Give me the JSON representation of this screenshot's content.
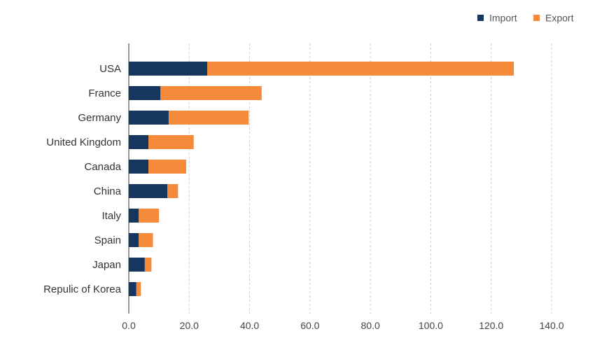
{
  "chart_data": {
    "type": "bar",
    "orientation": "horizontal",
    "stacked": true,
    "categories": [
      "USA",
      "France",
      "Germany",
      "United Kingdom",
      "Canada",
      "China",
      "Italy",
      "Spain",
      "Japan",
      "Repulic of Korea"
    ],
    "series": [
      {
        "name": "Import",
        "color": "#14365f",
        "values": [
          26,
          10.5,
          13.2,
          6.5,
          6.5,
          12.8,
          3.3,
          3.3,
          5.3,
          2.5
        ]
      },
      {
        "name": "Export",
        "color": "#f58b3a",
        "values": [
          101.5,
          33.5,
          26.5,
          15,
          12.5,
          3.5,
          6.7,
          4.7,
          2.2,
          1.5
        ]
      }
    ],
    "xlim": [
      0,
      140
    ],
    "xticks": [
      "0.0",
      "20.0",
      "40.0",
      "60.0",
      "80.0",
      "100.0",
      "120.0",
      "140.0"
    ],
    "xtick_values": [
      0,
      20,
      40,
      60,
      80,
      100,
      120,
      140
    ],
    "grid": "vertical-dashed",
    "legend_position": "top-right",
    "title": "",
    "xlabel": "",
    "ylabel": ""
  }
}
